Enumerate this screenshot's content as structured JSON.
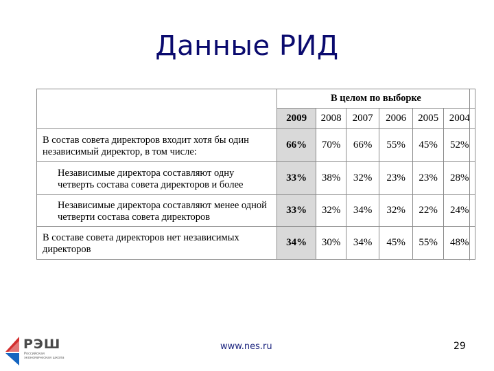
{
  "title": "Данные РИД",
  "table": {
    "group_header": "В целом по выборке",
    "years": [
      "2009",
      "2008",
      "2007",
      "2006",
      "2005",
      "2004"
    ],
    "rows": [
      {
        "label": "В состав совета директоров входит хотя бы один независимый директор, в том числе:",
        "values": [
          "66%",
          "70%",
          "66%",
          "55%",
          "45%",
          "52%"
        ]
      },
      {
        "label": "Независимые директора составляют одну четверть состава совета директоров и более",
        "values": [
          "33%",
          "38%",
          "32%",
          "23%",
          "23%",
          "28%"
        ]
      },
      {
        "label": "Независимые директора составляют менее одной четверти состава совета директоров",
        "values": [
          "33%",
          "32%",
          "34%",
          "32%",
          "22%",
          "24%"
        ]
      },
      {
        "label": "В составе совета директоров нет независимых директоров",
        "values": [
          "34%",
          "30%",
          "34%",
          "45%",
          "55%",
          "48%"
        ]
      }
    ]
  },
  "footer": {
    "url": "www.nes.ru",
    "page_number": "29",
    "logo_text": "РЭШ",
    "logo_subtext": "Российская экономическая школа"
  },
  "colors": {
    "title": "#0a0a6e",
    "highlight": "#d9d9d9",
    "logo_red": "#d32f2f",
    "logo_blue": "#1565c0"
  }
}
